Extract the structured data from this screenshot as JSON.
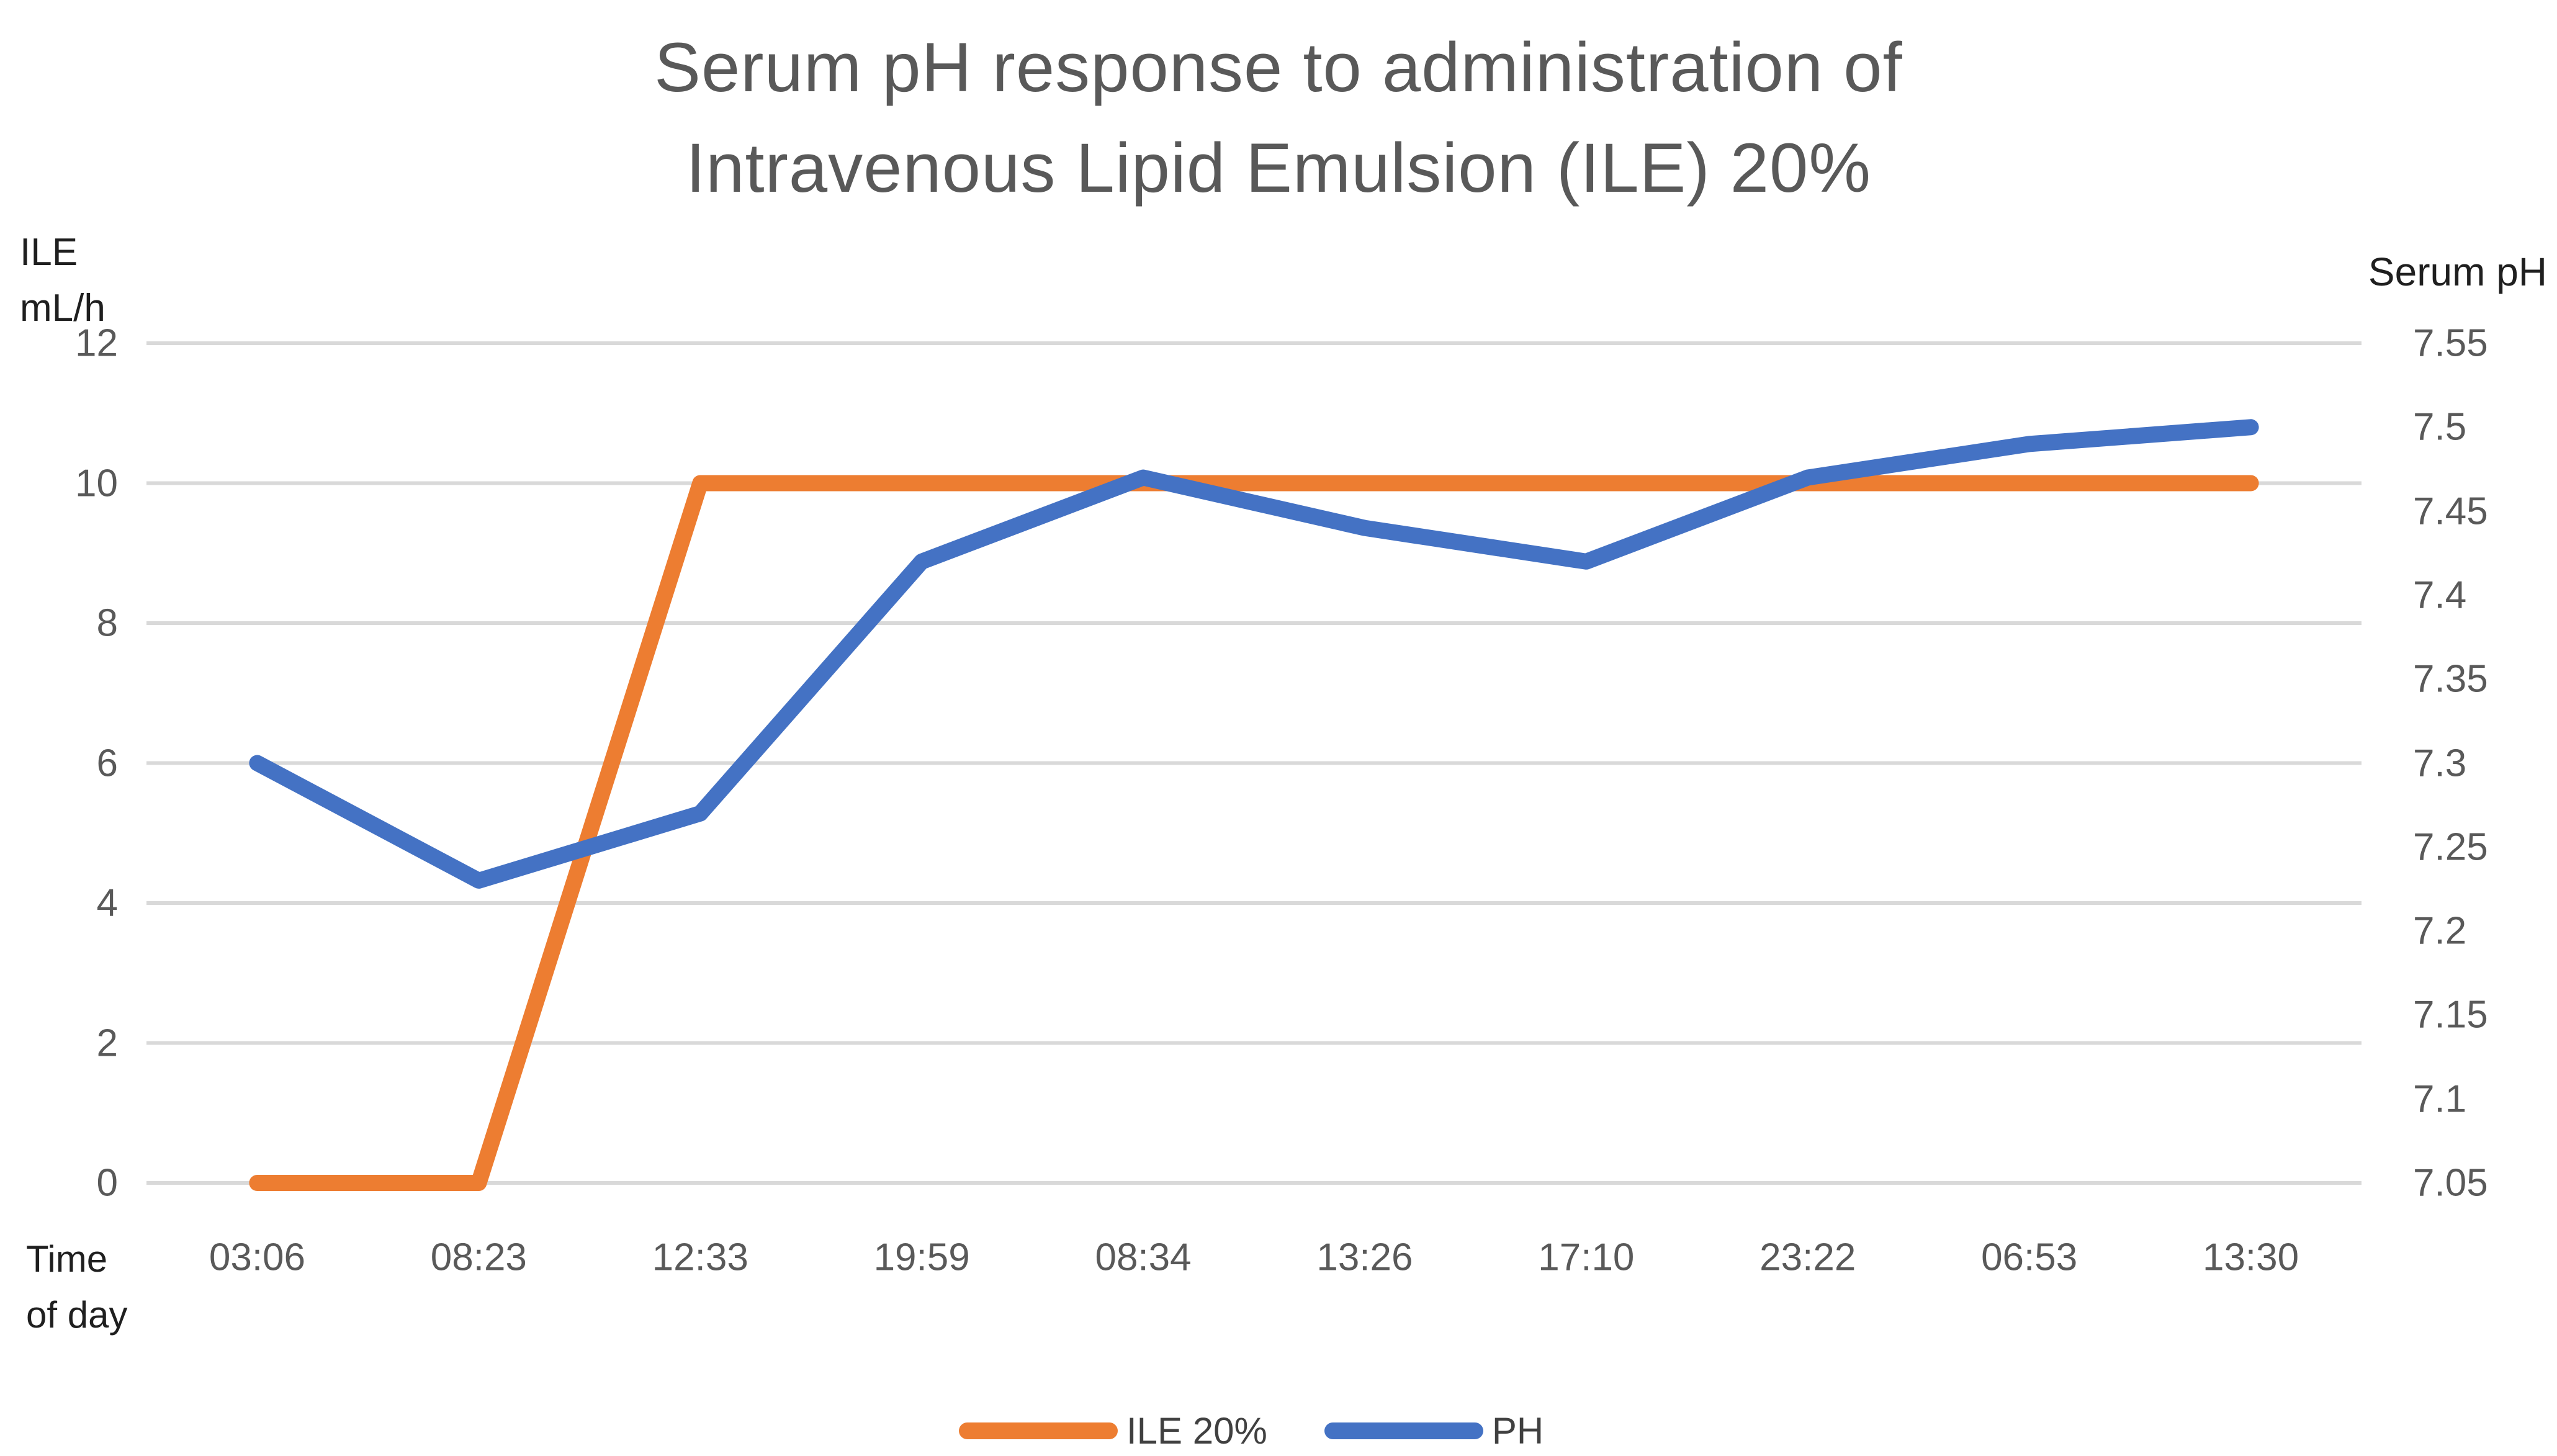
{
  "title": {
    "line1": "Serum pH response to administration of",
    "line2": "Intravenous Lipid Emulsion (ILE) 20%"
  },
  "left_axis": {
    "title_line1": "ILE",
    "title_line2": "mL/h",
    "ticks": [
      "12",
      "10",
      "8",
      "6",
      "4",
      "2",
      "0"
    ]
  },
  "right_axis": {
    "title": "Serum pH",
    "ticks": [
      "7.55",
      "7.5",
      "7.45",
      "7.4",
      "7.35",
      "7.3",
      "7.25",
      "7.2",
      "7.15",
      "7.1",
      "7.05"
    ]
  },
  "x_axis": {
    "title_line1": "Time",
    "title_line2": "of day",
    "labels": [
      "03:06",
      "08:23",
      "12:33",
      "19:59",
      "08:34",
      "13:26",
      "17:10",
      "23:22",
      "06:53",
      "13:30"
    ]
  },
  "legend": [
    {
      "label": "ILE 20%",
      "color": "#ED7D31"
    },
    {
      "label": "PH",
      "color": "#4472C4"
    }
  ],
  "colors": {
    "orange_series": "#ED7D31",
    "blue_series": "#4472C4",
    "gridline": "#D9D9D9",
    "title_text": "#595959",
    "tick_text": "#595959",
    "axis_title_text": "#1f1f1f",
    "legend_text": "#404040",
    "background": "#FFFFFF"
  },
  "chart_data": {
    "type": "line",
    "title": "Serum pH response to administration of Intravenous Lipid Emulsion (ILE) 20%",
    "xlabel": "Time of day",
    "left_ylabel": "ILE mL/h",
    "right_ylabel": "Serum pH",
    "categories": [
      "03:06",
      "08:23",
      "12:33",
      "19:59",
      "08:34",
      "13:26",
      "17:10",
      "23:22",
      "06:53",
      "13:30"
    ],
    "series": [
      {
        "name": "ILE 20%",
        "axis": "left",
        "color": "#ED7D31",
        "values": [
          0,
          0,
          10,
          10,
          10,
          10,
          10,
          10,
          10,
          10
        ]
      },
      {
        "name": "PH",
        "axis": "right",
        "color": "#4472C4",
        "values": [
          7.3,
          7.23,
          7.27,
          7.42,
          7.47,
          7.44,
          7.42,
          7.47,
          7.49,
          7.5
        ]
      }
    ],
    "left_ylim": [
      0,
      12
    ],
    "left_tick_step": 2,
    "right_ylim": [
      7.05,
      7.55
    ],
    "right_tick_step": 0.05,
    "grid": true,
    "legend_position": "bottom"
  }
}
